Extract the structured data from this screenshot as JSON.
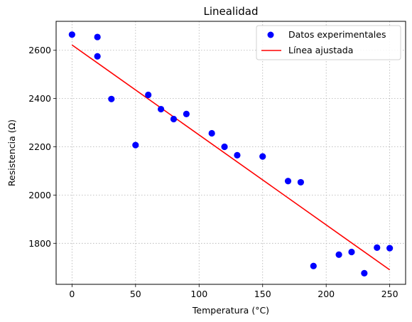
{
  "chart_data": {
    "type": "scatter",
    "title": "Linealidad",
    "xlabel": "Temperatura (°C)",
    "ylabel": "Resistencia (Ω)",
    "xlim": [
      -12.5,
      262.5
    ],
    "ylim": [
      1630,
      2720
    ],
    "xticks": [
      0,
      50,
      100,
      150,
      200,
      250
    ],
    "yticks": [
      1800,
      2000,
      2200,
      2400,
      2600
    ],
    "grid": true,
    "legend_position": "top-right",
    "series": [
      {
        "name": "Datos experimentales",
        "kind": "scatter",
        "color": "#0000ff",
        "x": [
          0,
          20,
          20,
          31,
          50,
          60,
          70,
          80,
          90,
          110,
          120,
          130,
          150,
          170,
          180,
          190,
          210,
          220,
          230,
          240,
          250
        ],
        "y": [
          2665,
          2655,
          2575,
          2398,
          2207,
          2415,
          2356,
          2315,
          2336,
          2256,
          2200,
          2165,
          2160,
          2058,
          2053,
          1706,
          1753,
          1764,
          1676,
          1782,
          1780
        ]
      },
      {
        "name": "Línea ajustada",
        "kind": "line",
        "color": "#ff0000",
        "x": [
          0,
          250
        ],
        "y": [
          2622,
          1690
        ]
      }
    ]
  }
}
